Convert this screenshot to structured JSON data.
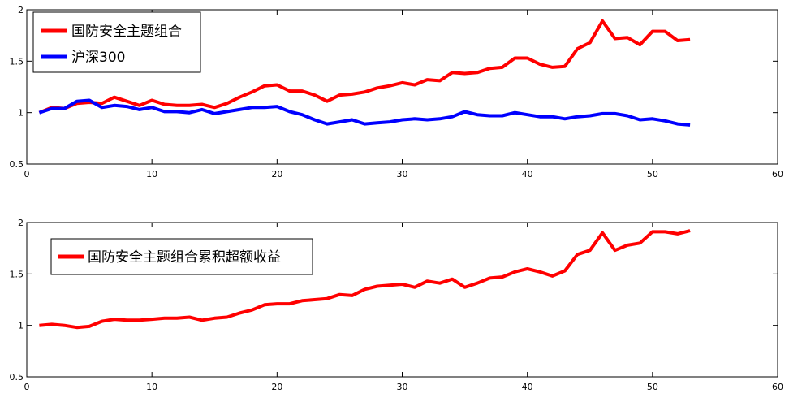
{
  "chart_data": [
    {
      "type": "line",
      "x": [
        1,
        2,
        3,
        4,
        5,
        6,
        7,
        8,
        9,
        10,
        11,
        12,
        13,
        14,
        15,
        16,
        17,
        18,
        19,
        20,
        21,
        22,
        23,
        24,
        25,
        26,
        27,
        28,
        29,
        30,
        31,
        32,
        33,
        34,
        35,
        36,
        37,
        38,
        39,
        40,
        41,
        42,
        43,
        44,
        45,
        46,
        47,
        48,
        49,
        50,
        51,
        52,
        53
      ],
      "series": [
        {
          "name": "国防安全主题组合",
          "color": "#ff0000",
          "values": [
            1.0,
            1.05,
            1.04,
            1.09,
            1.1,
            1.09,
            1.15,
            1.11,
            1.07,
            1.12,
            1.08,
            1.07,
            1.07,
            1.08,
            1.05,
            1.09,
            1.15,
            1.2,
            1.26,
            1.27,
            1.21,
            1.21,
            1.17,
            1.11,
            1.17,
            1.18,
            1.2,
            1.24,
            1.26,
            1.29,
            1.27,
            1.32,
            1.31,
            1.39,
            1.38,
            1.39,
            1.43,
            1.44,
            1.53,
            1.53,
            1.47,
            1.44,
            1.45,
            1.62,
            1.68,
            1.89,
            1.72,
            1.73,
            1.66,
            1.79,
            1.79,
            1.7,
            1.71
          ]
        },
        {
          "name": "沪深300",
          "color": "#0000ff",
          "values": [
            1.0,
            1.04,
            1.04,
            1.11,
            1.12,
            1.05,
            1.07,
            1.06,
            1.03,
            1.05,
            1.01,
            1.01,
            1.0,
            1.03,
            0.99,
            1.01,
            1.03,
            1.05,
            1.05,
            1.06,
            1.01,
            0.98,
            0.93,
            0.89,
            0.91,
            0.93,
            0.89,
            0.9,
            0.91,
            0.93,
            0.94,
            0.93,
            0.94,
            0.96,
            1.01,
            0.98,
            0.97,
            0.97,
            1.0,
            0.98,
            0.96,
            0.96,
            0.94,
            0.96,
            0.97,
            0.99,
            0.99,
            0.97,
            0.93,
            0.94,
            0.92,
            0.89,
            0.88
          ]
        }
      ],
      "xlim": [
        0,
        60
      ],
      "ylim": [
        0.5,
        2
      ],
      "xticks": [
        0,
        10,
        20,
        30,
        40,
        50,
        60
      ],
      "yticks": [
        0.5,
        1,
        1.5,
        2
      ],
      "ytick_labels": [
        "0.5",
        "1",
        "1.5",
        "2"
      ],
      "grid": false,
      "legend_position": "top-left"
    },
    {
      "type": "line",
      "x": [
        1,
        2,
        3,
        4,
        5,
        6,
        7,
        8,
        9,
        10,
        11,
        12,
        13,
        14,
        15,
        16,
        17,
        18,
        19,
        20,
        21,
        22,
        23,
        24,
        25,
        26,
        27,
        28,
        29,
        30,
        31,
        32,
        33,
        34,
        35,
        36,
        37,
        38,
        39,
        40,
        41,
        42,
        43,
        44,
        45,
        46,
        47,
        48,
        49,
        50,
        51,
        52,
        53
      ],
      "series": [
        {
          "name": "国防安全主题组合累积超额收益",
          "color": "#ff0000",
          "values": [
            1.0,
            1.01,
            1.0,
            0.98,
            0.99,
            1.04,
            1.06,
            1.05,
            1.05,
            1.06,
            1.07,
            1.07,
            1.08,
            1.05,
            1.07,
            1.08,
            1.12,
            1.15,
            1.2,
            1.21,
            1.21,
            1.24,
            1.25,
            1.26,
            1.3,
            1.29,
            1.35,
            1.38,
            1.39,
            1.4,
            1.37,
            1.43,
            1.41,
            1.45,
            1.37,
            1.41,
            1.46,
            1.47,
            1.52,
            1.55,
            1.52,
            1.48,
            1.53,
            1.69,
            1.73,
            1.9,
            1.73,
            1.78,
            1.8,
            1.91,
            1.91,
            1.89,
            1.92
          ]
        }
      ],
      "xlim": [
        0,
        60
      ],
      "ylim": [
        0.5,
        2
      ],
      "xticks": [
        0,
        10,
        20,
        30,
        40,
        50,
        60
      ],
      "yticks": [
        0.5,
        1,
        1.5,
        2
      ],
      "ytick_labels": [
        "0.5",
        "1",
        "1.5",
        "2"
      ],
      "grid": false,
      "legend_position": "top-left"
    }
  ]
}
